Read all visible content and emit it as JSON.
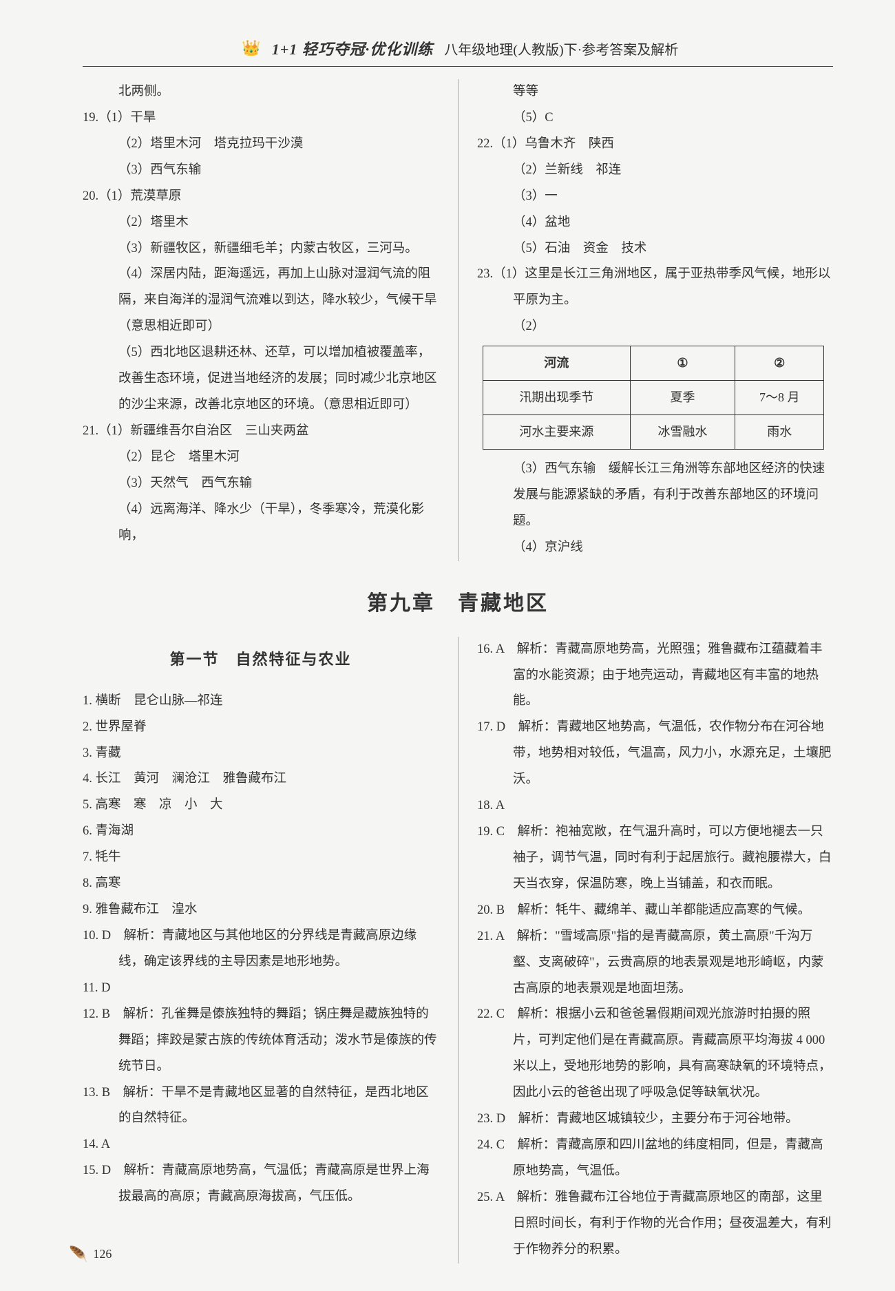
{
  "header": {
    "logo_glyph": "👑",
    "title_bold": "1+1 轻巧夺冠·优化训练",
    "title_rest": "八年级地理(人教版)下·参考答案及解析"
  },
  "upper_left": [
    {
      "cls": "cont-line",
      "t": "北两侧。"
    },
    {
      "cls": "q-line",
      "t": "19.（1）干旱"
    },
    {
      "cls": "sub-line",
      "t": "（2）塔里木河　塔克拉玛干沙漠"
    },
    {
      "cls": "sub-line",
      "t": "（3）西气东输"
    },
    {
      "cls": "q-line",
      "t": "20.（1）荒漠草原"
    },
    {
      "cls": "sub-line",
      "t": "（2）塔里木"
    },
    {
      "cls": "sub-line",
      "t": "（3）新疆牧区，新疆细毛羊；内蒙古牧区，三河马。"
    },
    {
      "cls": "sub-line",
      "t": "（4）深居内陆，距海遥远，再加上山脉对湿润气流的阻隔，来自海洋的湿润气流难以到达，降水较少，气候干旱（意思相近即可）"
    },
    {
      "cls": "sub-line",
      "t": "（5）西北地区退耕还林、还草，可以增加植被覆盖率，改善生态环境，促进当地经济的发展；同时减少北京地区的沙尘来源，改善北京地区的环境。（意思相近即可）"
    },
    {
      "cls": "q-line",
      "t": "21.（1）新疆维吾尔自治区　三山夹两盆"
    },
    {
      "cls": "sub-line",
      "t": "（2）昆仑　塔里木河"
    },
    {
      "cls": "sub-line",
      "t": "（3）天然气　西气东输"
    },
    {
      "cls": "sub-line",
      "t": "（4）远离海洋、降水少（干旱），冬季寒冷，荒漠化影响，"
    }
  ],
  "upper_right_before_table": [
    {
      "cls": "cont-line",
      "t": "等等"
    },
    {
      "cls": "sub-line",
      "t": "（5）C"
    },
    {
      "cls": "q-line",
      "t": "22.（1）乌鲁木齐　陕西"
    },
    {
      "cls": "sub-line",
      "t": "（2）兰新线　祁连"
    },
    {
      "cls": "sub-line",
      "t": "（3）一"
    },
    {
      "cls": "sub-line",
      "t": "（4）盆地"
    },
    {
      "cls": "sub-line",
      "t": "（5）石油　资金　技术"
    },
    {
      "cls": "q-line",
      "t": "23.（1）这里是长江三角洲地区，属于亚热带季风气候，地形以平原为主。"
    },
    {
      "cls": "sub-line",
      "t": "（2）"
    }
  ],
  "table": {
    "headers": [
      "河流",
      "①",
      "②"
    ],
    "rows": [
      [
        "汛期出现季节",
        "夏季",
        "7～8 月"
      ],
      [
        "河水主要来源",
        "冰雪融水",
        "雨水"
      ]
    ]
  },
  "upper_right_after_table": [
    {
      "cls": "sub-line",
      "t": "（3）西气东输　缓解长江三角洲等东部地区经济的快速发展与能源紧缺的矛盾，有利于改善东部地区的环境问题。"
    },
    {
      "cls": "sub-line",
      "t": "（4）京沪线"
    }
  ],
  "chapter_title": "第九章　青藏地区",
  "section_title": "第一节　自然特征与农业",
  "lower_left": [
    {
      "cls": "q-line",
      "t": "1. 横断　昆仑山脉—祁连"
    },
    {
      "cls": "q-line",
      "t": "2. 世界屋脊"
    },
    {
      "cls": "q-line",
      "t": "3. 青藏"
    },
    {
      "cls": "q-line",
      "t": "4. 长江　黄河　澜沧江　雅鲁藏布江"
    },
    {
      "cls": "q-line",
      "t": "5. 高寒　寒　凉　小　大"
    },
    {
      "cls": "q-line",
      "t": "6. 青海湖"
    },
    {
      "cls": "q-line",
      "t": "7. 牦牛"
    },
    {
      "cls": "q-line",
      "t": "8. 高寒"
    },
    {
      "cls": "q-line",
      "t": "9. 雅鲁藏布江　湟水"
    },
    {
      "cls": "q-line",
      "t": "10. D　解析：青藏地区与其他地区的分界线是青藏高原边缘线，确定该界线的主导因素是地形地势。"
    },
    {
      "cls": "q-line",
      "t": "11. D"
    },
    {
      "cls": "q-line",
      "t": "12. B　解析：孔雀舞是傣族独特的舞蹈；锅庄舞是藏族独特的舞蹈；摔跤是蒙古族的传统体育活动；泼水节是傣族的传统节日。"
    },
    {
      "cls": "q-line",
      "t": "13. B　解析：干旱不是青藏地区显著的自然特征，是西北地区的自然特征。"
    },
    {
      "cls": "q-line",
      "t": "14. A"
    },
    {
      "cls": "q-line",
      "t": "15. D　解析：青藏高原地势高，气温低；青藏高原是世界上海拔最高的高原；青藏高原海拔高，气压低。"
    }
  ],
  "lower_right": [
    {
      "cls": "q-line",
      "t": "16. A　解析：青藏高原地势高，光照强；雅鲁藏布江蕴藏着丰富的水能资源；由于地壳运动，青藏地区有丰富的地热能。"
    },
    {
      "cls": "q-line",
      "t": "17. D　解析：青藏地区地势高，气温低，农作物分布在河谷地带，地势相对较低，气温高，风力小，水源充足，土壤肥沃。"
    },
    {
      "cls": "q-line",
      "t": "18. A"
    },
    {
      "cls": "q-line",
      "t": "19. C　解析：袍袖宽敞，在气温升高时，可以方便地褪去一只袖子，调节气温，同时有利于起居旅行。藏袍腰襟大，白天当衣穿，保温防寒，晚上当铺盖，和衣而眠。"
    },
    {
      "cls": "q-line",
      "t": "20. B　解析：牦牛、藏绵羊、藏山羊都能适应高寒的气候。"
    },
    {
      "cls": "q-line",
      "t": "21. A　解析：\"雪域高原\"指的是青藏高原，黄土高原\"千沟万壑、支离破碎\"，云贵高原的地表景观是地形崎岖，内蒙古高原的地表景观是地面坦荡。"
    },
    {
      "cls": "q-line",
      "t": "22. C　解析：根据小云和爸爸暑假期间观光旅游时拍摄的照片，可判定他们是在青藏高原。青藏高原平均海拔 4 000 米以上，受地形地势的影响，具有高寒缺氧的环境特点，因此小云的爸爸出现了呼吸急促等缺氧状况。"
    },
    {
      "cls": "q-line",
      "t": "23. D　解析：青藏地区城镇较少，主要分布于河谷地带。"
    },
    {
      "cls": "q-line",
      "t": "24. C　解析：青藏高原和四川盆地的纬度相同，但是，青藏高原地势高，气温低。"
    },
    {
      "cls": "q-line",
      "t": "25. A　解析：雅鲁藏布江谷地位于青藏高原地区的南部，这里日照时间长，有利于作物的光合作用；昼夜温差大，有利于作物养分的积累。"
    }
  ],
  "page_number": "126",
  "feather_glyph": "🪶"
}
